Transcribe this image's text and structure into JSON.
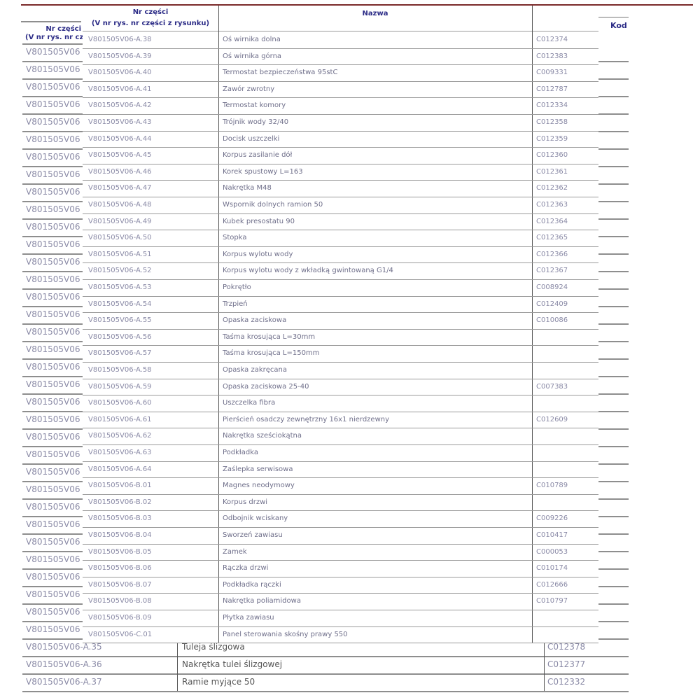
{
  "back_table": {
    "header": {
      "col1_line1": "Nr części",
      "col1_line2": "(V nr rys. nr części z rysunku)",
      "col3_line1": "K",
      "col3_line2": "Kod"
    },
    "hidden_row_prefix": "V801505V06",
    "hidden_row_count": 34,
    "rows": [
      {
        "nr": "V801505V06-A.35",
        "nazwa": "Tuleja ślizgowa",
        "kod": "C012378"
      },
      {
        "nr": "V801505V06-A.36",
        "nazwa": "Nakrętka tulei ślizgowej",
        "kod": "C012377"
      },
      {
        "nr": "V801505V06-A.37",
        "nazwa": "Ramie myjące 50",
        "kod": "C012332"
      }
    ]
  },
  "front_table": {
    "header": {
      "col1_line1": "Nr części",
      "col1_line2": "(V nr rys. nr części z rysunku)",
      "col2": "Nazwa",
      "col3": ""
    },
    "rows": [
      {
        "nr": "V801505V06-A.38",
        "nazwa": "Oś wirnika dolna",
        "kod": "C012374"
      },
      {
        "nr": "V801505V06-A.39",
        "nazwa": "Oś wirnika górna",
        "kod": "C012383"
      },
      {
        "nr": "V801505V06-A.40",
        "nazwa": "Termostat bezpieczeństwa 95stC",
        "kod": "C009331"
      },
      {
        "nr": "V801505V06-A.41",
        "nazwa": "Zawór zwrotny",
        "kod": "C012787"
      },
      {
        "nr": "V801505V06-A.42",
        "nazwa": "Termostat komory",
        "kod": "C012334"
      },
      {
        "nr": "V801505V06-A.43",
        "nazwa": "Trójnik wody 32/40",
        "kod": "C012358"
      },
      {
        "nr": "V801505V06-A.44",
        "nazwa": "Docisk uszczelki",
        "kod": "C012359"
      },
      {
        "nr": "V801505V06-A.45",
        "nazwa": "Korpus zasilanie dół",
        "kod": "C012360"
      },
      {
        "nr": "V801505V06-A.46",
        "nazwa": "Korek spustowy L=163",
        "kod": "C012361"
      },
      {
        "nr": "V801505V06-A.47",
        "nazwa": "Nakrętka M48",
        "kod": "C012362"
      },
      {
        "nr": "V801505V06-A.48",
        "nazwa": "Wspornik dolnych ramion 50",
        "kod": "C012363"
      },
      {
        "nr": "V801505V06-A.49",
        "nazwa": "Kubek presostatu 90",
        "kod": "C012364"
      },
      {
        "nr": "V801505V06-A.50",
        "nazwa": "Stopka",
        "kod": "C012365"
      },
      {
        "nr": "V801505V06-A.51",
        "nazwa": "Korpus wylotu wody",
        "kod": "C012366"
      },
      {
        "nr": "V801505V06-A.52",
        "nazwa": "Korpus wylotu wody z wkładką gwintowaną G1/4",
        "kod": "C012367"
      },
      {
        "nr": "V801505V06-A.53",
        "nazwa": "Pokrętło",
        "kod": "C008924"
      },
      {
        "nr": "V801505V06-A.54",
        "nazwa": "Trzpień",
        "kod": "C012409"
      },
      {
        "nr": "V801505V06-A.55",
        "nazwa": "Opaska zaciskowa",
        "kod": "C010086"
      },
      {
        "nr": "V801505V06-A.56",
        "nazwa": "Taśma krosująca L=30mm",
        "kod": ""
      },
      {
        "nr": "V801505V06-A.57",
        "nazwa": "Taśma krosująca L=150mm",
        "kod": ""
      },
      {
        "nr": "V801505V06-A.58",
        "nazwa": "Opaska zakręcana",
        "kod": ""
      },
      {
        "nr": "V801505V06-A.59",
        "nazwa": "Opaska zaciskowa 25-40",
        "kod": "C007383"
      },
      {
        "nr": "V801505V06-A.60",
        "nazwa": "Uszczelka fibra",
        "kod": ""
      },
      {
        "nr": "V801505V06-A.61",
        "nazwa": "Pierścień osadczy zewnętrzny 16x1 nierdzewny",
        "kod": "C012609"
      },
      {
        "nr": "V801505V06-A.62",
        "nazwa": "Nakrętka sześciokątna",
        "kod": ""
      },
      {
        "nr": "V801505V06-A.63",
        "nazwa": "Podkładka",
        "kod": ""
      },
      {
        "nr": "V801505V06-A.64",
        "nazwa": "Zaślepka serwisowa",
        "kod": ""
      },
      {
        "nr": "V801505V06-B.01",
        "nazwa": "Magnes neodymowy",
        "kod": "C010789"
      },
      {
        "nr": "V801505V06-B.02",
        "nazwa": "Korpus drzwi",
        "kod": ""
      },
      {
        "nr": "V801505V06-B.03",
        "nazwa": "Odbojnik wciskany",
        "kod": "C009226"
      },
      {
        "nr": "V801505V06-B.04",
        "nazwa": "Sworzeń zawiasu",
        "kod": "C010417"
      },
      {
        "nr": "V801505V06-B.05",
        "nazwa": "Zamek",
        "kod": "C000053"
      },
      {
        "nr": "V801505V06-B.06",
        "nazwa": "Rączka drzwi",
        "kod": "C010174"
      },
      {
        "nr": "V801505V06-B.07",
        "nazwa": "Podkładka rączki",
        "kod": "C012666"
      },
      {
        "nr": "V801505V06-B.08",
        "nazwa": "Nakrętka poliamidowa",
        "kod": "C010797"
      },
      {
        "nr": "V801505V06-B.09",
        "nazwa": "Płytka zawiasu",
        "kod": ""
      },
      {
        "nr": "V801505V06-C.01",
        "nazwa": "Panel sterowania skośny prawy 550",
        "kod": ""
      }
    ]
  }
}
